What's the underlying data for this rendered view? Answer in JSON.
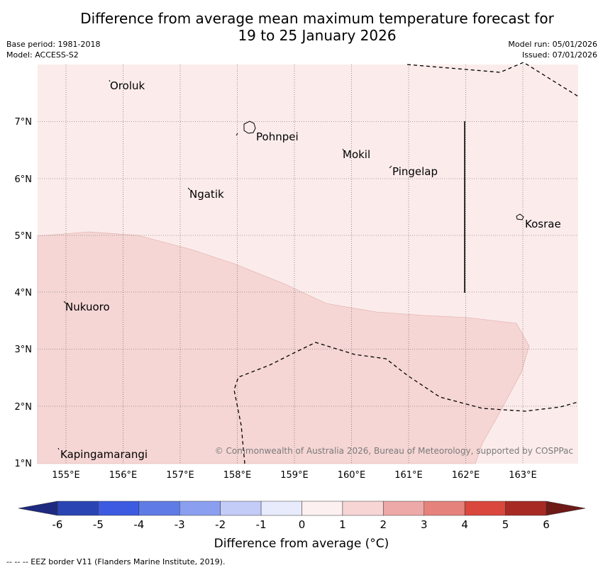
{
  "header": {
    "title_line1": "Difference from average mean maximum temperature forecast for",
    "title_line2": "19 to 25 January 2026",
    "base_period": "Base period: 1981-2018",
    "model": "Model: ACCESS-S2",
    "model_run": "Model run: 05/01/2026",
    "issued": "Issued: 07/01/2026"
  },
  "map": {
    "lon_labels": [
      "155°E",
      "156°E",
      "157°E",
      "158°E",
      "159°E",
      "160°E",
      "161°E",
      "162°E",
      "163°E"
    ],
    "lat_labels": [
      "7°N",
      "6°N",
      "5°N",
      "4°N",
      "3°N",
      "2°N",
      "1°N"
    ],
    "places": [
      "Oroluk",
      "Pohnpei",
      "Mokil",
      "Pingelap",
      "Ngatik",
      "Kosrae",
      "Nukuoro",
      "Kapingamarangi"
    ],
    "copyright": "© Commonwealth of Australia 2026, Bureau of Meteorology, supported by COSPPac",
    "colors": {
      "band_0_1": "#fbeceb",
      "band_1_2": "#f5d6d4"
    }
  },
  "colorbar": {
    "ticks": [
      "-6",
      "-5",
      "-4",
      "-3",
      "-2",
      "-1",
      "0",
      "1",
      "2",
      "3",
      "4",
      "5",
      "6"
    ],
    "colors": [
      "#1e2a80",
      "#2a45b3",
      "#3c5be0",
      "#5f7be6",
      "#8b9ff0",
      "#c3cbf7",
      "#e8ebfc",
      "#fdf0f0",
      "#f6d5d4",
      "#eda9a7",
      "#e6827c",
      "#d9473d",
      "#a82a25",
      "#6e1a17"
    ],
    "title": "Difference from average (°C)"
  },
  "footer": {
    "eez_note": "--  --  -- EEZ border V11 (Flanders Marine Institute, 2019)."
  }
}
